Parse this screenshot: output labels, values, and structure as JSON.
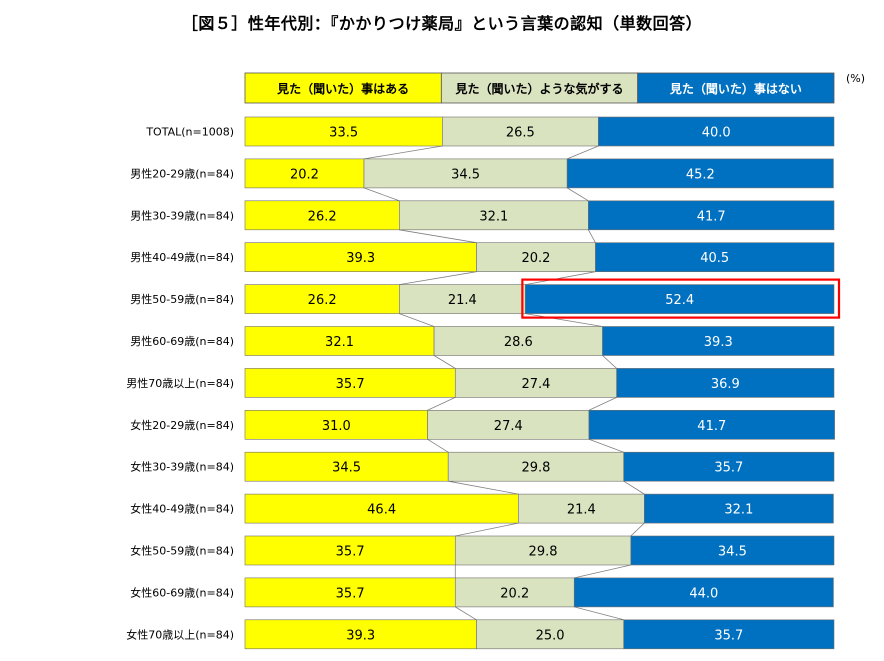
{
  "chart_data": {
    "type": "bar",
    "title": "［図５］性年代別：『かかりつけ薬局』という言葉の認知（単数回答）",
    "unit": "(%)",
    "stacked": true,
    "orientation": "horizontal",
    "xlim": [
      0,
      100
    ],
    "legend_position": "top",
    "grid": false,
    "colors": {
      "series_1": "#ffff00",
      "series_2": "#d9e3bf",
      "series_3": "#0070c0"
    },
    "categories": [
      "TOTAL(n=1008)",
      "男性20-29歳(n=84)",
      "男性30-39歳(n=84)",
      "男性40-49歳(n=84)",
      "男性50-59歳(n=84)",
      "男性60-69歳(n=84)",
      "男性70歳以上(n=84)",
      "女性20-29歳(n=84)",
      "女性30-39歳(n=84)",
      "女性40-49歳(n=84)",
      "女性50-59歳(n=84)",
      "女性60-69歳(n=84)",
      "女性70歳以上(n=84)"
    ],
    "series": [
      {
        "name": "見た（聞いた）事はある",
        "values": [
          33.5,
          20.2,
          26.2,
          39.3,
          26.2,
          32.1,
          35.7,
          31.0,
          34.5,
          46.4,
          35.7,
          35.7,
          39.3
        ]
      },
      {
        "name": "見た（聞いた）ような気がする",
        "values": [
          26.5,
          34.5,
          32.1,
          20.2,
          21.4,
          28.6,
          27.4,
          27.4,
          29.8,
          21.4,
          29.8,
          20.2,
          25.0
        ]
      },
      {
        "name": "見た（聞いた）事はない",
        "values": [
          40.0,
          45.2,
          41.7,
          40.5,
          52.4,
          39.3,
          36.9,
          41.7,
          35.7,
          32.1,
          34.5,
          44.0,
          35.7
        ]
      }
    ],
    "highlight": {
      "category_index": 4,
      "series_index": 2,
      "color": "#ff0000"
    }
  }
}
